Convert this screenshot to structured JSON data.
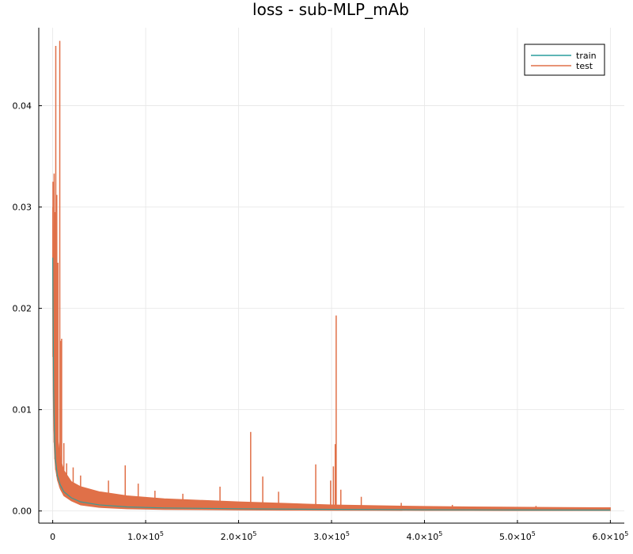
{
  "chart_data": {
    "type": "line",
    "title": "loss - sub-MLP_mAb",
    "xlabel": "",
    "ylabel": "",
    "xlim": [
      -15000,
      615000
    ],
    "ylim": [
      -0.0012,
      0.0477
    ],
    "x_ticks": [
      {
        "value": 0,
        "label": "0",
        "exp": ""
      },
      {
        "value": 100000,
        "label": "1.0×10",
        "exp": "5"
      },
      {
        "value": 200000,
        "label": "2.0×10",
        "exp": "5"
      },
      {
        "value": 300000,
        "label": "3.0×10",
        "exp": "5"
      },
      {
        "value": 400000,
        "label": "4.0×10",
        "exp": "5"
      },
      {
        "value": 500000,
        "label": "5.0×10",
        "exp": "5"
      },
      {
        "value": 600000,
        "label": "6.0×10",
        "exp": "5"
      }
    ],
    "y_ticks": [
      {
        "value": 0.0,
        "label": "0.00"
      },
      {
        "value": 0.01,
        "label": "0.01"
      },
      {
        "value": 0.02,
        "label": "0.02"
      },
      {
        "value": 0.03,
        "label": "0.03"
      },
      {
        "value": 0.04,
        "label": "0.04"
      }
    ],
    "grid": true,
    "legend_position": "top-right",
    "series": [
      {
        "name": "train",
        "color": "#2a9e9e",
        "x": [
          0,
          1000,
          2000,
          3000,
          5000,
          8000,
          12000,
          20000,
          30000,
          50000,
          80000,
          120000,
          200000,
          300000,
          400000,
          500000,
          600000
        ],
        "y": [
          0.025,
          0.012,
          0.007,
          0.005,
          0.0035,
          0.0026,
          0.0019,
          0.0013,
          0.0009,
          0.0006,
          0.0004,
          0.0003,
          0.00022,
          0.00016,
          0.00012,
          0.0001,
          9e-05
        ]
      },
      {
        "name": "test",
        "color": "#e07048",
        "envelope": {
          "x": [
            0,
            500,
            1000,
            2000,
            3000,
            5000,
            8000,
            12000,
            20000,
            30000,
            50000,
            80000,
            120000,
            200000,
            250000,
            300000,
            350000,
            400000,
            450000,
            500000,
            550000,
            600000
          ],
          "upper": [
            0.03,
            0.028,
            0.022,
            0.015,
            0.011,
            0.0075,
            0.0052,
            0.004,
            0.0029,
            0.0024,
            0.0019,
            0.0015,
            0.0012,
            0.0009,
            0.00075,
            0.0006,
            0.00052,
            0.00045,
            0.0004,
            0.00037,
            0.00034,
            0.00032
          ],
          "lower": [
            0.02,
            0.012,
            0.008,
            0.0055,
            0.0042,
            0.0031,
            0.0022,
            0.0015,
            0.001,
            0.0006,
            0.00035,
            0.00022,
            0.00015,
            0.0001,
            8e-05,
            7e-05,
            6e-05,
            5e-05,
            5e-05,
            4e-05,
            4e-05,
            4e-05
          ]
        },
        "spikes": [
          {
            "x": 300,
            "y": 0.0325
          },
          {
            "x": 1500,
            "y": 0.0333
          },
          {
            "x": 2300,
            "y": 0.0295
          },
          {
            "x": 3300,
            "y": 0.0459
          },
          {
            "x": 4400,
            "y": 0.0312
          },
          {
            "x": 5600,
            "y": 0.0245
          },
          {
            "x": 7600,
            "y": 0.0464
          },
          {
            "x": 8800,
            "y": 0.0168
          },
          {
            "x": 9600,
            "y": 0.017
          },
          {
            "x": 12000,
            "y": 0.0067
          },
          {
            "x": 15000,
            "y": 0.0047
          },
          {
            "x": 22000,
            "y": 0.0043
          },
          {
            "x": 30000,
            "y": 0.0035
          },
          {
            "x": 60000,
            "y": 0.003
          },
          {
            "x": 78000,
            "y": 0.0045
          },
          {
            "x": 92000,
            "y": 0.0027
          },
          {
            "x": 110000,
            "y": 0.002
          },
          {
            "x": 140000,
            "y": 0.0017
          },
          {
            "x": 180000,
            "y": 0.0024
          },
          {
            "x": 213000,
            "y": 0.0078
          },
          {
            "x": 226000,
            "y": 0.0034
          },
          {
            "x": 243000,
            "y": 0.0019
          },
          {
            "x": 283000,
            "y": 0.0046
          },
          {
            "x": 299000,
            "y": 0.003
          },
          {
            "x": 302000,
            "y": 0.0044
          },
          {
            "x": 304000,
            "y": 0.0066
          },
          {
            "x": 305000,
            "y": 0.0193
          },
          {
            "x": 310000,
            "y": 0.0021
          },
          {
            "x": 332000,
            "y": 0.0014
          },
          {
            "x": 375000,
            "y": 0.0008
          },
          {
            "x": 430000,
            "y": 0.0006
          },
          {
            "x": 520000,
            "y": 0.0005
          }
        ]
      }
    ]
  }
}
